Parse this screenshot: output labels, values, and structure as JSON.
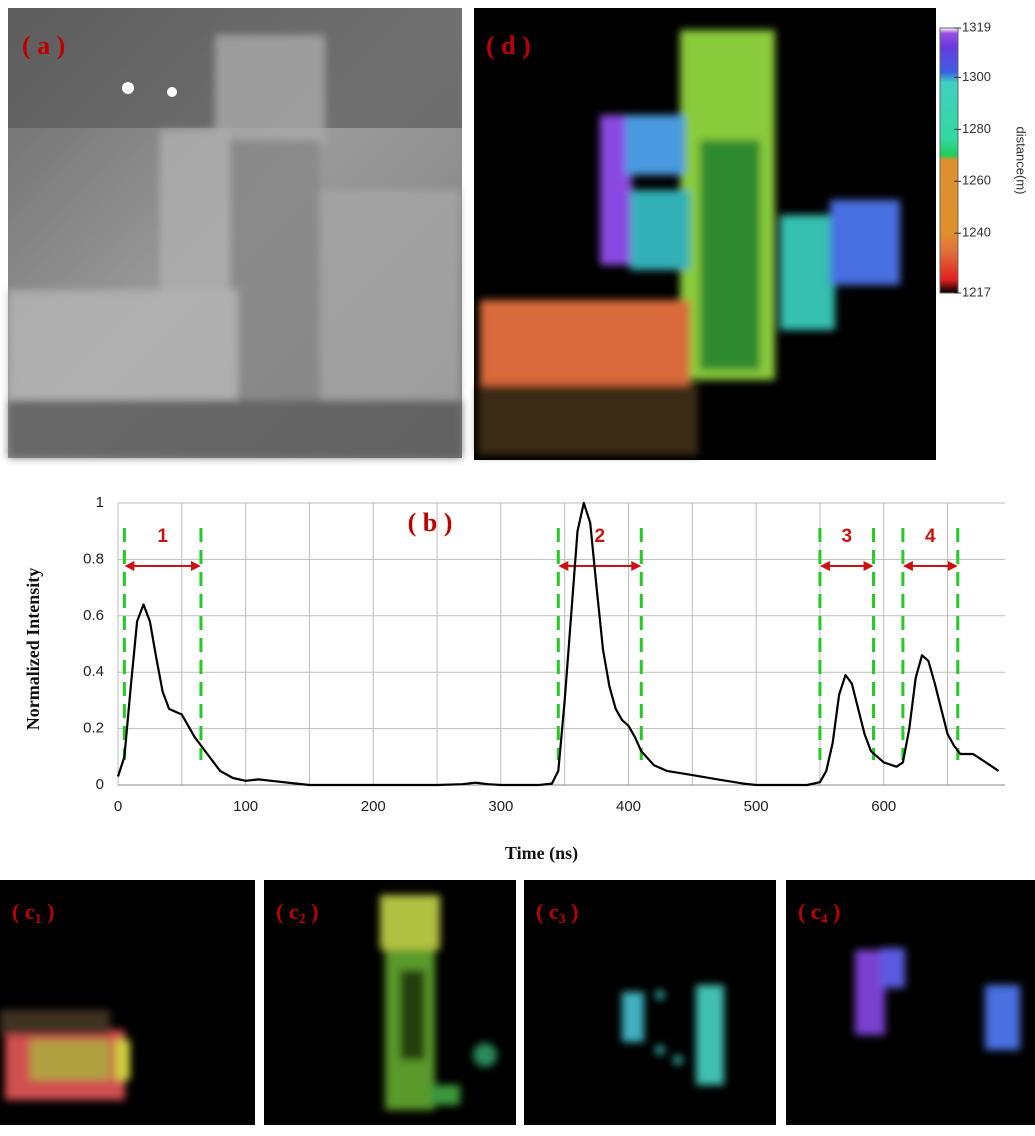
{
  "chart_data": [
    {
      "type": "line",
      "xlabel": "Time (ns)",
      "ylabel": "Normalized Intensity",
      "panel": "( b )",
      "x": [
        0,
        5,
        10,
        15,
        20,
        25,
        30,
        35,
        40,
        45,
        50,
        55,
        60,
        65,
        70,
        80,
        90,
        100,
        110,
        120,
        140,
        150,
        200,
        250,
        270,
        280,
        290,
        300,
        330,
        340,
        345,
        350,
        355,
        360,
        365,
        370,
        375,
        380,
        385,
        390,
        395,
        400,
        405,
        410,
        420,
        430,
        450,
        470,
        490,
        500,
        540,
        550,
        555,
        560,
        565,
        570,
        575,
        580,
        585,
        590,
        600,
        610,
        615,
        620,
        625,
        630,
        635,
        640,
        645,
        650,
        655,
        660,
        670,
        680,
        690
      ],
      "series": [
        {
          "color": "#000000",
          "values": [
            0.03,
            0.1,
            0.35,
            0.58,
            0.64,
            0.58,
            0.45,
            0.33,
            0.27,
            0.26,
            0.25,
            0.21,
            0.17,
            0.14,
            0.11,
            0.05,
            0.025,
            0.015,
            0.02,
            0.015,
            0.005,
            0,
            0,
            0,
            0.003,
            0.008,
            0.003,
            0,
            0,
            0.005,
            0.05,
            0.3,
            0.6,
            0.9,
            1.0,
            0.93,
            0.7,
            0.48,
            0.35,
            0.27,
            0.23,
            0.21,
            0.17,
            0.12,
            0.07,
            0.05,
            0.035,
            0.02,
            0.005,
            0,
            0,
            0.01,
            0.05,
            0.15,
            0.32,
            0.39,
            0.36,
            0.27,
            0.18,
            0.12,
            0.08,
            0.065,
            0.08,
            0.2,
            0.38,
            0.46,
            0.44,
            0.36,
            0.27,
            0.18,
            0.14,
            0.11,
            0.11,
            0.08,
            0.05
          ]
        }
      ],
      "xlim": [
        0,
        695
      ],
      "xticks": [
        0,
        100,
        200,
        300,
        400,
        500,
        600
      ],
      "xgrid": [
        50,
        150,
        250,
        350,
        450,
        550,
        650
      ],
      "ylim": [
        0,
        1
      ],
      "yticks": [
        0,
        0.2,
        0.4,
        0.6,
        0.8,
        1
      ],
      "grid": true,
      "annotations": [
        {
          "label": "1",
          "x0": 5,
          "x1": 65
        },
        {
          "label": "2",
          "x0": 345,
          "x1": 410
        },
        {
          "label": "3",
          "x0": 550,
          "x1": 592
        },
        {
          "label": "4",
          "x0": 615,
          "x1": 658
        }
      ]
    },
    {
      "type": "colorbar",
      "label": "distance(m)",
      "ylim": [
        1217,
        1319
      ],
      "yticks": [
        1319,
        1300,
        1280,
        1260,
        1240,
        1217
      ],
      "stops": [
        {
          "value": 1217,
          "color": "#000000"
        },
        {
          "value": 1222,
          "color": "#e02020"
        },
        {
          "value": 1232,
          "color": "#e06a3a"
        },
        {
          "value": 1240,
          "color": "#e0902a"
        },
        {
          "value": 1268,
          "color": "#e09030"
        },
        {
          "value": 1270,
          "color": "#22cc55"
        },
        {
          "value": 1276,
          "color": "#30d8a0"
        },
        {
          "value": 1298,
          "color": "#40d0c0"
        },
        {
          "value": 1302,
          "color": "#3a60e0"
        },
        {
          "value": 1312,
          "color": "#6a3ae0"
        },
        {
          "value": 1317,
          "color": "#9a50e0"
        },
        {
          "value": 1319,
          "color": "#ffffff"
        }
      ]
    }
  ],
  "panels": {
    "a": {
      "before": "( a )"
    },
    "d": {
      "before": "( d )"
    },
    "c": [
      {
        "before": "( c",
        "sub": "1",
        "after": " )"
      },
      {
        "before": "( c",
        "sub": "2",
        "after": " )"
      },
      {
        "before": "( c",
        "sub": "3",
        "after": " )"
      },
      {
        "before": "( c",
        "sub": "4",
        "after": " )"
      }
    ]
  }
}
